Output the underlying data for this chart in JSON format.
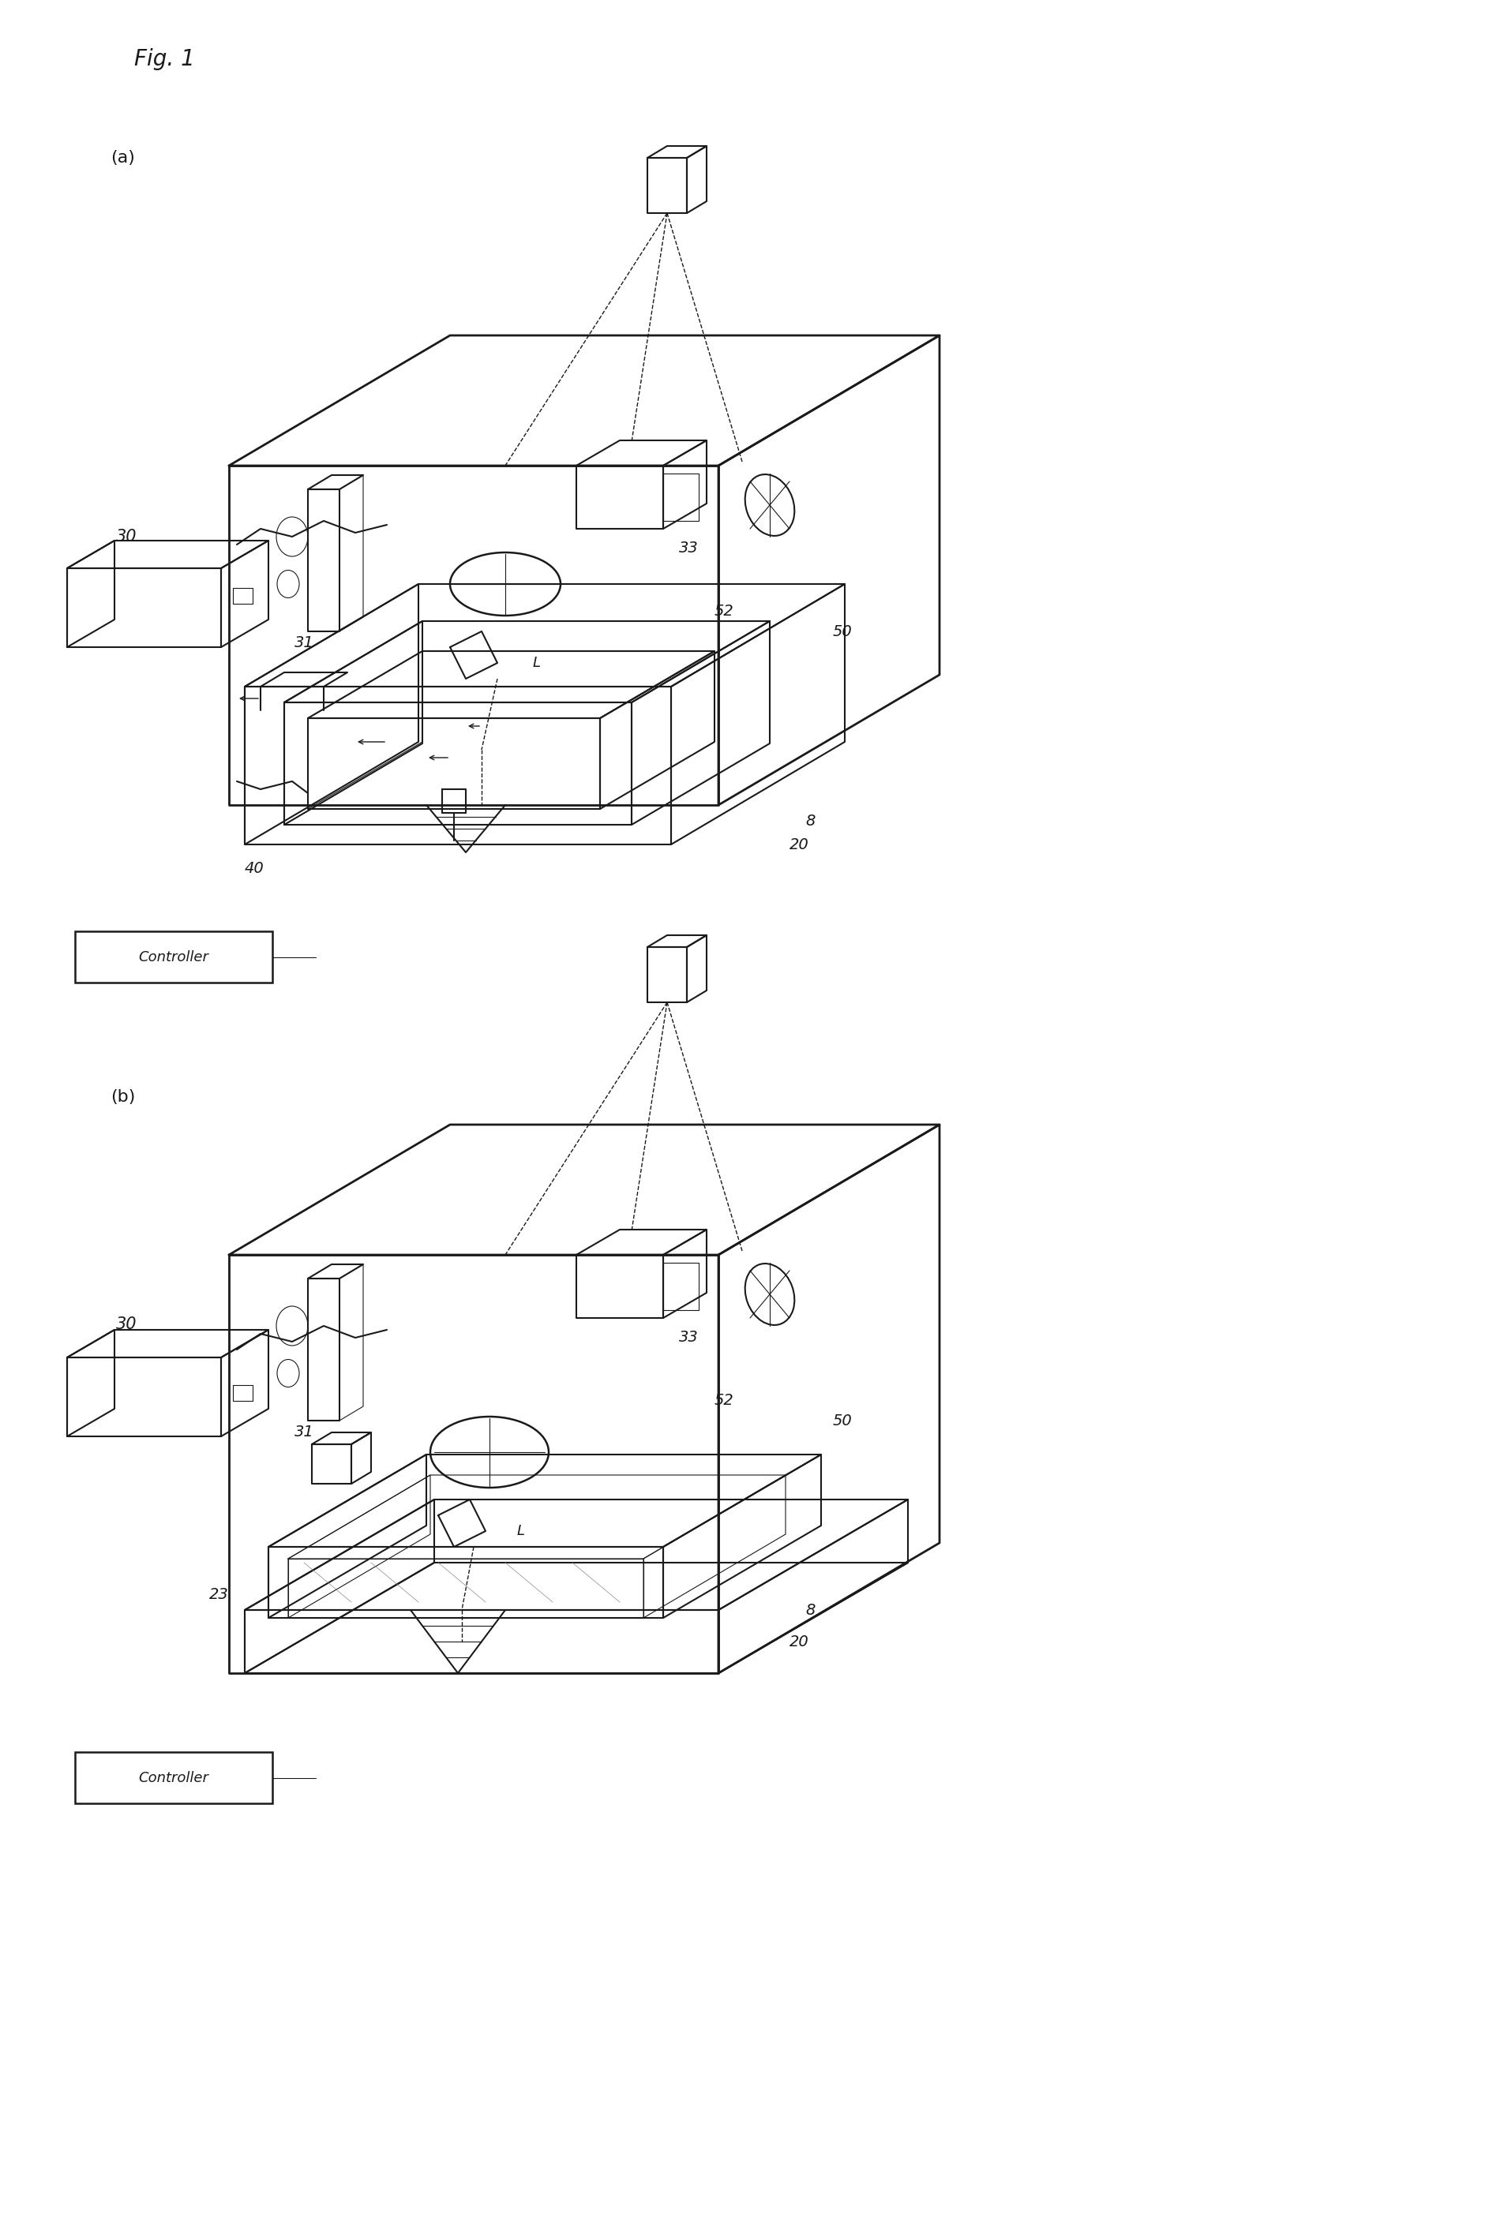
{
  "background_color": "#ffffff",
  "line_color": "#1a1a1a",
  "fig_title": "Fig. 1",
  "panel_a_label": "(a)",
  "panel_b_label": "(b)",
  "lw_main": 1.5,
  "lw_thin": 0.8,
  "lw_dashed": 1.0,
  "font_size_title": 18,
  "font_size_label": 13,
  "font_size_num": 14,
  "font_size_ctrl": 12
}
